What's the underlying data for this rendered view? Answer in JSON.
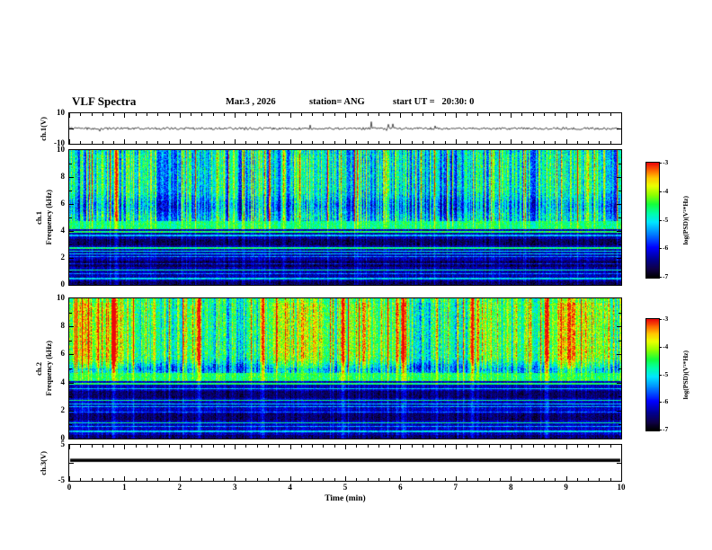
{
  "header": {
    "title": "VLF Spectra",
    "date": "Mar.3 , 2026",
    "station": "station= ANG",
    "start_ut": "start UT =   20:30: 0"
  },
  "left_labels": {
    "ch1_wave": "ch.1(V)",
    "ch1_spec_line1": "ch.1",
    "ch1_spec_line2": "Frequency (kHz)",
    "ch2_spec_line1": "ch.2",
    "ch2_spec_line2": "Frequency (kHz)",
    "ch3_wave": "ch.3(V)"
  },
  "axes": {
    "x": {
      "label": "Time (min)",
      "ticks": [
        0,
        1,
        2,
        3,
        4,
        5,
        6,
        7,
        8,
        9,
        10
      ],
      "lim": [
        0,
        10
      ],
      "minor_step": 0.2
    },
    "wave1_y": {
      "ticks": [
        10,
        -10
      ],
      "lim": [
        -10,
        10
      ]
    },
    "spec_y": {
      "ticks": [
        10,
        8,
        6,
        4,
        2,
        0
      ],
      "lim": [
        0,
        10
      ]
    },
    "wave3_y": {
      "ticks": [
        5,
        -5
      ],
      "lim": [
        -5,
        5
      ]
    }
  },
  "colorbar": {
    "label": "log(PSD)(V²*Hz)",
    "ticks": [
      -3,
      -4,
      -5,
      -6,
      -7
    ],
    "lim": [
      -7,
      -3
    ]
  },
  "chart_data": {
    "type": "multi-panel-spectrogram",
    "title": "VLF Spectra",
    "x": {
      "label": "Time (min)",
      "lim": [
        0,
        10
      ]
    },
    "zlim": [
      -7,
      -3
    ],
    "colorbar_label": "log(PSD)(V²*Hz)",
    "colormap_stops": [
      {
        "t": 0.0,
        "rgb": [
          0,
          0,
          0
        ]
      },
      {
        "t": 0.07,
        "rgb": [
          15,
          0,
          70
        ]
      },
      {
        "t": 0.16,
        "rgb": [
          0,
          0,
          150
        ]
      },
      {
        "t": 0.26,
        "rgb": [
          0,
          0,
          255
        ]
      },
      {
        "t": 0.38,
        "rgb": [
          0,
          130,
          255
        ]
      },
      {
        "t": 0.48,
        "rgb": [
          0,
          230,
          255
        ]
      },
      {
        "t": 0.56,
        "rgb": [
          0,
          255,
          170
        ]
      },
      {
        "t": 0.64,
        "rgb": [
          20,
          255,
          60
        ]
      },
      {
        "t": 0.72,
        "rgb": [
          140,
          255,
          0
        ]
      },
      {
        "t": 0.8,
        "rgb": [
          235,
          255,
          0
        ]
      },
      {
        "t": 0.87,
        "rgb": [
          255,
          200,
          0
        ]
      },
      {
        "t": 0.93,
        "rgb": [
          255,
          110,
          0
        ]
      },
      {
        "t": 1.0,
        "rgb": [
          235,
          10,
          10
        ]
      }
    ],
    "panels": [
      {
        "id": "c-wave1",
        "type": "line",
        "label": "ch.1(V)",
        "ylim": [
          -10,
          10
        ],
        "noise_amp": 1.3,
        "spike_prob": 0.01,
        "spike_amp": 10,
        "seed": 424242
      },
      {
        "id": "c-spec1",
        "type": "heatmap",
        "label": "ch.1 Frequency (kHz)",
        "ylim": [
          0,
          10
        ],
        "upper": {
          "f_min": 4.75,
          "base": -6.25,
          "noise": 0.45,
          "streak_gain": 2.4,
          "patch_gain": 0.5,
          "dip_center": 5.9,
          "dip_width": 0.7,
          "dip_depth": 0.5
        },
        "band": {
          "f_min": 4.2,
          "base": -5.05,
          "noise": 0.35
        },
        "low": {
          "base": -6.55,
          "noise": 0.3,
          "streak_gain": 0.55
        },
        "dark_bands": [
          [
            2.95,
            3.45
          ],
          [
            1.35,
            1.85
          ],
          [
            0.0,
            0.28
          ]
        ],
        "lines": [
          {
            "f": 3.95,
            "w": 0.14,
            "v": -4.7
          },
          {
            "f": 3.7,
            "w": 0.08,
            "v": -5.4
          },
          {
            "f": 2.78,
            "w": 0.1,
            "v": -4.8
          },
          {
            "f": 2.55,
            "w": 0.08,
            "v": -5.1
          },
          {
            "f": 2.33,
            "w": 0.07,
            "v": -5.3
          },
          {
            "f": 2.12,
            "w": 0.06,
            "v": -5.6
          },
          {
            "f": 1.6,
            "w": 0.05,
            "v": -6.1
          },
          {
            "f": 1.12,
            "w": 0.1,
            "v": -4.9
          },
          {
            "f": 0.85,
            "w": 0.06,
            "v": -5.6
          },
          {
            "f": 0.5,
            "w": 0.09,
            "v": -5.3
          }
        ],
        "strong_streaks": [
          0.85
        ],
        "seed": 101
      },
      {
        "id": "c-spec2",
        "type": "heatmap",
        "label": "ch.2 Frequency (kHz)",
        "ylim": [
          0,
          10
        ],
        "upper": {
          "f_min": 4.7,
          "base": -5.55,
          "noise": 0.5,
          "streak_gain": 2.0,
          "patch_gain": 1.0,
          "dip_center": 5.0,
          "dip_width": 0.5,
          "dip_depth": 0.8
        },
        "band": {
          "f_min": 4.15,
          "base": -4.95,
          "noise": 0.35
        },
        "low": {
          "base": -6.5,
          "noise": 0.3,
          "streak_gain": 0.6
        },
        "dark_bands": [
          [
            2.9,
            3.4
          ],
          [
            1.3,
            1.8
          ],
          [
            0.0,
            0.28
          ]
        ],
        "lines": [
          {
            "f": 3.95,
            "w": 0.13,
            "v": -4.7
          },
          {
            "f": 3.6,
            "w": 0.08,
            "v": -5.3
          },
          {
            "f": 2.75,
            "w": 0.1,
            "v": -4.8
          },
          {
            "f": 2.5,
            "w": 0.08,
            "v": -5.2
          },
          {
            "f": 2.3,
            "w": 0.07,
            "v": -5.4
          },
          {
            "f": 1.9,
            "w": 0.06,
            "v": -5.8
          },
          {
            "f": 1.15,
            "w": 0.1,
            "v": -4.9
          },
          {
            "f": 0.9,
            "w": 0.06,
            "v": -5.5
          },
          {
            "f": 0.55,
            "w": 0.09,
            "v": -5.3
          }
        ],
        "strong_streaks": [
          0.8,
          2.35,
          3.5,
          4.95,
          6.05,
          7.3,
          8.65
        ],
        "seed": 202
      },
      {
        "id": "c-wave3",
        "type": "const",
        "label": "ch.3(V)",
        "ylim": [
          -5,
          5
        ],
        "value": 0.7,
        "thickness": 3.5
      }
    ]
  }
}
